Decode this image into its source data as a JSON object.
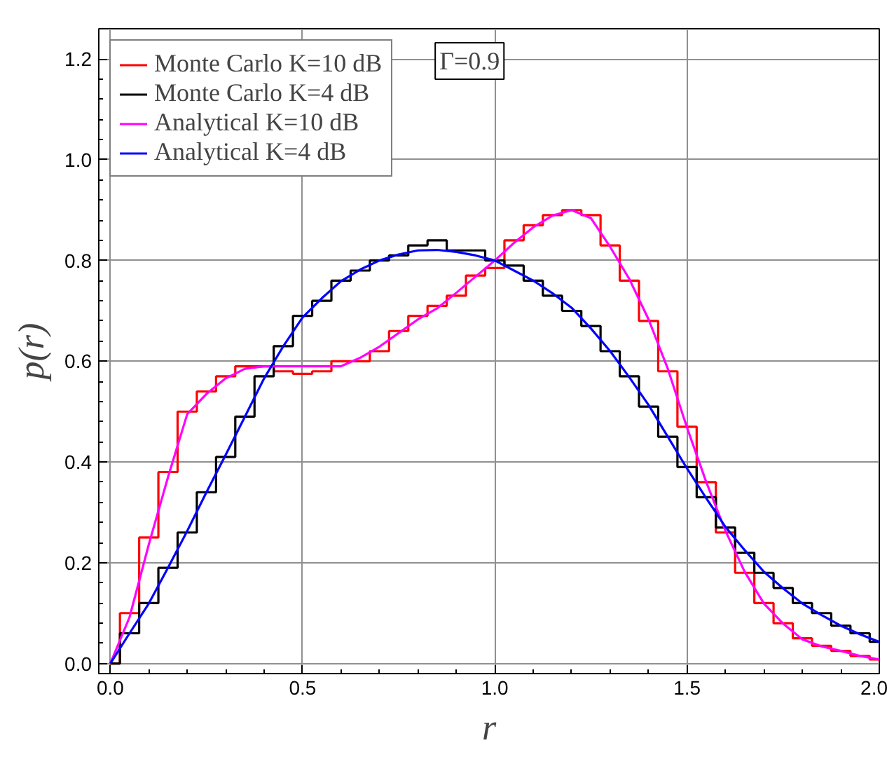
{
  "chart_data": {
    "type": "line",
    "xlabel": "r",
    "ylabel": "p(r)",
    "x": [
      0,
      0.05,
      0.1,
      0.15,
      0.2,
      0.25,
      0.3,
      0.35,
      0.4,
      0.45,
      0.5,
      0.55,
      0.6,
      0.65,
      0.7,
      0.75,
      0.8,
      0.85,
      0.9,
      0.95,
      1.0,
      1.05,
      1.1,
      1.15,
      1.2,
      1.25,
      1.3,
      1.35,
      1.4,
      1.45,
      1.5,
      1.55,
      1.6,
      1.65,
      1.7,
      1.75,
      1.8,
      1.85,
      1.9,
      1.95,
      2.0
    ],
    "series": [
      {
        "name": "Monte Carlo K=10 dB",
        "type": "step",
        "color": "#ff0000",
        "values": [
          0,
          0.1,
          0.25,
          0.38,
          0.5,
          0.54,
          0.57,
          0.59,
          0.59,
          0.58,
          0.575,
          0.58,
          0.6,
          0.6,
          0.62,
          0.66,
          0.69,
          0.71,
          0.73,
          0.77,
          0.785,
          0.84,
          0.87,
          0.89,
          0.9,
          0.89,
          0.83,
          0.76,
          0.68,
          0.58,
          0.47,
          0.36,
          0.26,
          0.18,
          0.12,
          0.08,
          0.05,
          0.035,
          0.025,
          0.015,
          0.008
        ]
      },
      {
        "name": "Monte Carlo K=4 dB",
        "type": "step",
        "color": "#000000",
        "values": [
          0,
          0.06,
          0.12,
          0.19,
          0.26,
          0.34,
          0.41,
          0.49,
          0.57,
          0.63,
          0.69,
          0.72,
          0.76,
          0.78,
          0.8,
          0.81,
          0.83,
          0.84,
          0.82,
          0.82,
          0.8,
          0.79,
          0.76,
          0.73,
          0.7,
          0.67,
          0.62,
          0.57,
          0.51,
          0.45,
          0.39,
          0.33,
          0.27,
          0.22,
          0.18,
          0.15,
          0.12,
          0.1,
          0.075,
          0.06,
          0.043
        ]
      },
      {
        "name": "Analytical K=10 dB",
        "color": "#ff00ff",
        "values": [
          0,
          0.092,
          0.236,
          0.37,
          0.495,
          0.535,
          0.566,
          0.585,
          0.59,
          0.59,
          0.59,
          0.59,
          0.59,
          0.607,
          0.629,
          0.656,
          0.683,
          0.705,
          0.736,
          0.768,
          0.8,
          0.835,
          0.866,
          0.889,
          0.9,
          0.884,
          0.827,
          0.763,
          0.683,
          0.585,
          0.468,
          0.36,
          0.263,
          0.182,
          0.119,
          0.079,
          0.048,
          0.034,
          0.025,
          0.015,
          0.008
        ]
      },
      {
        "name": "Analytical K=4 dB",
        "color": "#0000ff",
        "values": [
          0,
          0.06,
          0.119,
          0.19,
          0.263,
          0.34,
          0.414,
          0.49,
          0.566,
          0.63,
          0.687,
          0.725,
          0.759,
          0.782,
          0.8,
          0.812,
          0.82,
          0.821,
          0.817,
          0.81,
          0.8,
          0.78,
          0.76,
          0.735,
          0.706,
          0.665,
          0.62,
          0.568,
          0.513,
          0.45,
          0.387,
          0.328,
          0.271,
          0.225,
          0.182,
          0.149,
          0.119,
          0.096,
          0.075,
          0.058,
          0.043
        ]
      }
    ],
    "annotations": [
      "Γ=0.9"
    ],
    "xlim": [
      -0.03,
      2.0
    ],
    "ylim": [
      -0.02,
      1.26
    ],
    "xticks": [
      {
        "value": 0,
        "label": "0.0"
      },
      0.5,
      {
        "value": 1,
        "label": "1.0"
      },
      1.5,
      {
        "value": 2,
        "label": "2.0"
      }
    ],
    "yticks": [
      {
        "value": 0,
        "label": "0.0"
      },
      0.2,
      0.4,
      0.6,
      0.8,
      {
        "value": 1,
        "label": "1.0"
      },
      1.2
    ],
    "grid": true,
    "legend": "top left"
  }
}
